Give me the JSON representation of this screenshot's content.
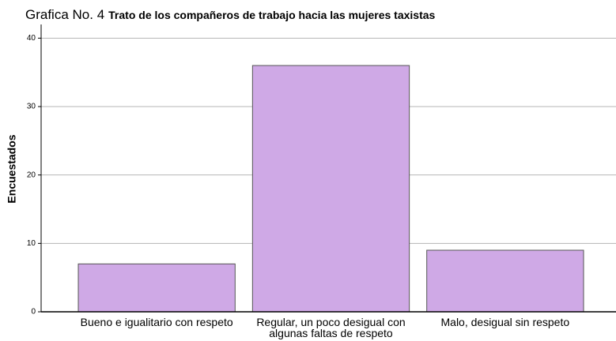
{
  "chart_data": {
    "type": "bar",
    "title_label": "Grafica No. 4",
    "title": "Trato de los compañeros de trabajo hacia las mujeres taxistas",
    "y_label": "Encuestados",
    "categories": [
      "Bueno e igualitario con respeto",
      "Regular, un poco desigual con algunas faltas de respeto",
      "Malo, desigual sin respeto"
    ],
    "values": [
      7,
      36,
      9
    ],
    "color": "#cfa9e6",
    "ylim": [
      0,
      42
    ],
    "yticks": [
      0,
      10,
      20,
      30,
      40
    ],
    "grid": true
  }
}
